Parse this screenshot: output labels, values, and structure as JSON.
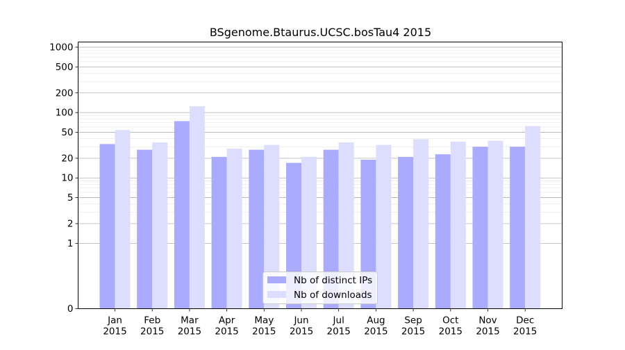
{
  "chart_data": {
    "type": "bar",
    "title": "BSgenome.Btaurus.UCSC.bosTau4 2015",
    "xlabel": "",
    "ylabel": "",
    "yscale": "symlog",
    "ylim": [
      0,
      1200
    ],
    "yticks": [
      0,
      1,
      2,
      5,
      10,
      20,
      50,
      100,
      200,
      500,
      1000
    ],
    "ytick_labels": [
      "0",
      "1",
      "2",
      "5",
      "10",
      "20",
      "50",
      "100",
      "200",
      "500",
      "1000"
    ],
    "categories": [
      [
        "Jan",
        "2015"
      ],
      [
        "Feb",
        "2015"
      ],
      [
        "Mar",
        "2015"
      ],
      [
        "Apr",
        "2015"
      ],
      [
        "May",
        "2015"
      ],
      [
        "Jun",
        "2015"
      ],
      [
        "Jul",
        "2015"
      ],
      [
        "Aug",
        "2015"
      ],
      [
        "Sep",
        "2015"
      ],
      [
        "Oct",
        "2015"
      ],
      [
        "Nov",
        "2015"
      ],
      [
        "Dec",
        "2015"
      ]
    ],
    "series": [
      {
        "name": "Nb of distinct IPs",
        "color": "#aaaaff",
        "values": [
          33,
          27,
          74,
          21,
          27,
          17,
          27,
          19,
          21,
          23,
          30,
          30
        ]
      },
      {
        "name": "Nb of downloads",
        "color": "#ddddff",
        "values": [
          54,
          35,
          125,
          28,
          32,
          21,
          35,
          32,
          39,
          36,
          37,
          62
        ]
      }
    ],
    "grid": true,
    "legend_position": "lower-center"
  }
}
